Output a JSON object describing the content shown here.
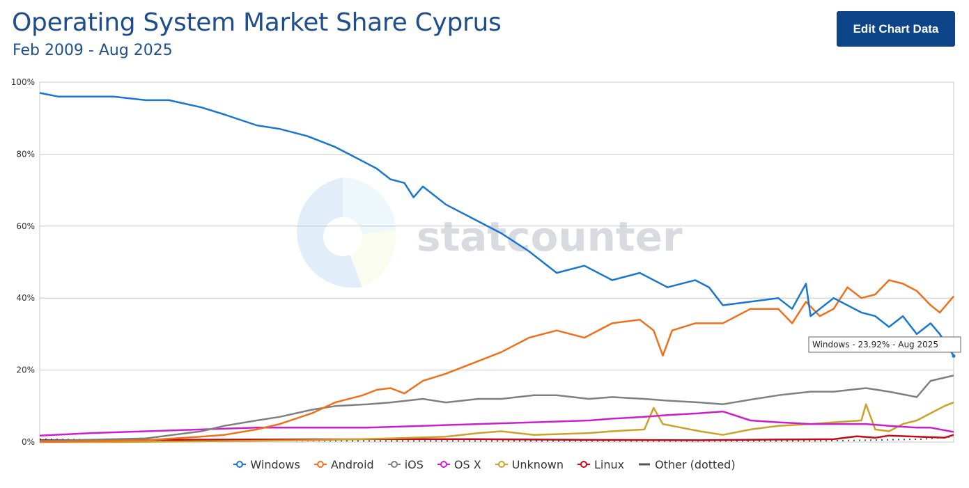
{
  "header": {
    "title": "Operating System Market Share Cyprus",
    "subtitle": "Feb 2009 - Aug 2025",
    "edit_button": "Edit Chart Data"
  },
  "watermark": {
    "text": "statcounter"
  },
  "tooltip": {
    "text": "Windows - 23.92% - Aug 2025"
  },
  "colors": {
    "Windows": "#1776cf",
    "Android": "#f07019",
    "iOS": "#7f7f7f",
    "OS X": "#cb1ecf",
    "Unknown": "#c9a227",
    "Linux": "#c1091a",
    "Other": "#555555"
  },
  "chart_data": {
    "type": "line",
    "x_range": [
      "2009-02",
      "2025-08"
    ],
    "ylim": [
      0,
      100
    ],
    "y_ticks": [
      "0%",
      "20%",
      "40%",
      "60%",
      "80%",
      "100%"
    ],
    "grid": true,
    "legend_position": "bottom",
    "series": [
      {
        "name": "Windows",
        "style": "solid",
        "points": [
          [
            "2009-02",
            97
          ],
          [
            "2009-06",
            96
          ],
          [
            "2010-01",
            96
          ],
          [
            "2010-06",
            96
          ],
          [
            "2011-01",
            95
          ],
          [
            "2011-06",
            95
          ],
          [
            "2012-01",
            93
          ],
          [
            "2012-06",
            91
          ],
          [
            "2013-01",
            88
          ],
          [
            "2013-06",
            87
          ],
          [
            "2013-12",
            85
          ],
          [
            "2014-06",
            82
          ],
          [
            "2014-12",
            78
          ],
          [
            "2015-03",
            76
          ],
          [
            "2015-06",
            73
          ],
          [
            "2015-09",
            72
          ],
          [
            "2015-11",
            68
          ],
          [
            "2016-01",
            71
          ],
          [
            "2016-06",
            66
          ],
          [
            "2016-12",
            62
          ],
          [
            "2017-06",
            58
          ],
          [
            "2017-12",
            53
          ],
          [
            "2018-06",
            47
          ],
          [
            "2018-12",
            49
          ],
          [
            "2019-06",
            45
          ],
          [
            "2019-12",
            47
          ],
          [
            "2020-06",
            43
          ],
          [
            "2020-12",
            45
          ],
          [
            "2021-03",
            43
          ],
          [
            "2021-06",
            38
          ],
          [
            "2021-12",
            39
          ],
          [
            "2022-06",
            40
          ],
          [
            "2022-09",
            37
          ],
          [
            "2022-12",
            44
          ],
          [
            "2023-01",
            35
          ],
          [
            "2023-06",
            40
          ],
          [
            "2023-12",
            36
          ],
          [
            "2024-03",
            35
          ],
          [
            "2024-06",
            32
          ],
          [
            "2024-09",
            35
          ],
          [
            "2024-12",
            30
          ],
          [
            "2025-03",
            33
          ],
          [
            "2025-05",
            30
          ],
          [
            "2025-08",
            23.92
          ]
        ]
      },
      {
        "name": "Android",
        "style": "solid",
        "points": [
          [
            "2009-02",
            0
          ],
          [
            "2011-01",
            0.5
          ],
          [
            "2012-01",
            1.5
          ],
          [
            "2012-06",
            2
          ],
          [
            "2013-01",
            3.5
          ],
          [
            "2013-06",
            5
          ],
          [
            "2014-01",
            8
          ],
          [
            "2014-06",
            11
          ],
          [
            "2014-12",
            13
          ],
          [
            "2015-03",
            14.5
          ],
          [
            "2015-06",
            15
          ],
          [
            "2015-09",
            13.5
          ],
          [
            "2016-01",
            17
          ],
          [
            "2016-06",
            19
          ],
          [
            "2016-12",
            22
          ],
          [
            "2017-06",
            25
          ],
          [
            "2017-12",
            29
          ],
          [
            "2018-06",
            31
          ],
          [
            "2018-12",
            29
          ],
          [
            "2019-06",
            33
          ],
          [
            "2019-12",
            34
          ],
          [
            "2020-03",
            31
          ],
          [
            "2020-05",
            24
          ],
          [
            "2020-07",
            31
          ],
          [
            "2020-12",
            33
          ],
          [
            "2021-06",
            33
          ],
          [
            "2021-12",
            37
          ],
          [
            "2022-06",
            37
          ],
          [
            "2022-09",
            33
          ],
          [
            "2022-12",
            39
          ],
          [
            "2023-03",
            35
          ],
          [
            "2023-06",
            37
          ],
          [
            "2023-09",
            43
          ],
          [
            "2023-12",
            40
          ],
          [
            "2024-03",
            41
          ],
          [
            "2024-06",
            45
          ],
          [
            "2024-09",
            44
          ],
          [
            "2024-12",
            42
          ],
          [
            "2025-03",
            38
          ],
          [
            "2025-05",
            36
          ],
          [
            "2025-08",
            40.5
          ]
        ]
      },
      {
        "name": "iOS",
        "style": "solid",
        "points": [
          [
            "2009-02",
            0.3
          ],
          [
            "2011-01",
            1
          ],
          [
            "2012-01",
            3
          ],
          [
            "2012-06",
            4.5
          ],
          [
            "2013-01",
            6
          ],
          [
            "2013-06",
            7
          ],
          [
            "2014-01",
            9
          ],
          [
            "2014-06",
            10
          ],
          [
            "2015-01",
            10.5
          ],
          [
            "2015-06",
            11
          ],
          [
            "2016-01",
            12
          ],
          [
            "2016-06",
            11
          ],
          [
            "2017-01",
            12
          ],
          [
            "2017-06",
            12
          ],
          [
            "2018-01",
            13
          ],
          [
            "2018-06",
            13
          ],
          [
            "2019-01",
            12
          ],
          [
            "2019-06",
            12.5
          ],
          [
            "2020-01",
            12
          ],
          [
            "2020-06",
            11.5
          ],
          [
            "2021-01",
            11
          ],
          [
            "2021-06",
            10.5
          ],
          [
            "2022-01",
            12
          ],
          [
            "2022-06",
            13
          ],
          [
            "2023-01",
            14
          ],
          [
            "2023-06",
            14
          ],
          [
            "2024-01",
            15
          ],
          [
            "2024-06",
            14
          ],
          [
            "2024-12",
            12.5
          ],
          [
            "2025-03",
            17
          ],
          [
            "2025-08",
            18.5
          ]
        ]
      },
      {
        "name": "OS X",
        "style": "solid",
        "points": [
          [
            "2009-02",
            1.8
          ],
          [
            "2010-01",
            2.5
          ],
          [
            "2011-01",
            3
          ],
          [
            "2012-01",
            3.5
          ],
          [
            "2013-01",
            4
          ],
          [
            "2014-01",
            4
          ],
          [
            "2015-01",
            4
          ],
          [
            "2016-01",
            4.5
          ],
          [
            "2017-01",
            5
          ],
          [
            "2018-01",
            5.5
          ],
          [
            "2019-01",
            6
          ],
          [
            "2019-06",
            6.5
          ],
          [
            "2020-01",
            7
          ],
          [
            "2020-06",
            7.5
          ],
          [
            "2021-01",
            8
          ],
          [
            "2021-06",
            8.5
          ],
          [
            "2021-12",
            6
          ],
          [
            "2022-06",
            5.5
          ],
          [
            "2023-01",
            5
          ],
          [
            "2023-06",
            5
          ],
          [
            "2024-01",
            5
          ],
          [
            "2024-06",
            4.5
          ],
          [
            "2024-12",
            4
          ],
          [
            "2025-03",
            4
          ],
          [
            "2025-08",
            2.8
          ]
        ]
      },
      {
        "name": "Unknown",
        "style": "solid",
        "points": [
          [
            "2009-02",
            0
          ],
          [
            "2010-03",
            0
          ],
          [
            "2010-07",
            0
          ],
          [
            "2014-01",
            0.5
          ],
          [
            "2015-06",
            1
          ],
          [
            "2016-06",
            1.5
          ],
          [
            "2017-01",
            2.5
          ],
          [
            "2017-06",
            3
          ],
          [
            "2018-01",
            2
          ],
          [
            "2019-01",
            2.5
          ],
          [
            "2019-06",
            3
          ],
          [
            "2020-01",
            3.5
          ],
          [
            "2020-03",
            9.5
          ],
          [
            "2020-05",
            5
          ],
          [
            "2020-09",
            4
          ],
          [
            "2021-01",
            3
          ],
          [
            "2021-06",
            2
          ],
          [
            "2021-12",
            3.5
          ],
          [
            "2022-06",
            4.5
          ],
          [
            "2023-01",
            5
          ],
          [
            "2023-06",
            5.5
          ],
          [
            "2023-12",
            6
          ],
          [
            "2024-01",
            10.5
          ],
          [
            "2024-03",
            3.5
          ],
          [
            "2024-06",
            3
          ],
          [
            "2024-09",
            5
          ],
          [
            "2024-12",
            6
          ],
          [
            "2025-03",
            8
          ],
          [
            "2025-06",
            10
          ],
          [
            "2025-08",
            11
          ]
        ]
      },
      {
        "name": "Linux",
        "style": "solid",
        "points": [
          [
            "2009-02",
            0.5
          ],
          [
            "2011-01",
            0.6
          ],
          [
            "2013-01",
            0.7
          ],
          [
            "2015-01",
            0.8
          ],
          [
            "2017-01",
            0.8
          ],
          [
            "2019-01",
            0.6
          ],
          [
            "2021-01",
            0.5
          ],
          [
            "2022-06",
            0.7
          ],
          [
            "2023-06",
            0.8
          ],
          [
            "2023-11",
            1.6
          ],
          [
            "2024-03",
            1.2
          ],
          [
            "2024-06",
            1.8
          ],
          [
            "2024-12",
            1.5
          ],
          [
            "2025-06",
            1.2
          ],
          [
            "2025-08",
            2
          ]
        ]
      },
      {
        "name": "Other (dotted)",
        "style": "dotted",
        "points": [
          [
            "2009-02",
            0.8
          ],
          [
            "2011-01",
            0.5
          ],
          [
            "2013-01",
            0.4
          ],
          [
            "2015-01",
            0.3
          ],
          [
            "2017-01",
            0.3
          ],
          [
            "2019-01",
            0.3
          ],
          [
            "2021-01",
            0.3
          ],
          [
            "2023-01",
            0.3
          ],
          [
            "2024-01",
            0.5
          ],
          [
            "2025-01",
            0.8
          ],
          [
            "2025-08",
            1.5
          ]
        ]
      }
    ]
  }
}
